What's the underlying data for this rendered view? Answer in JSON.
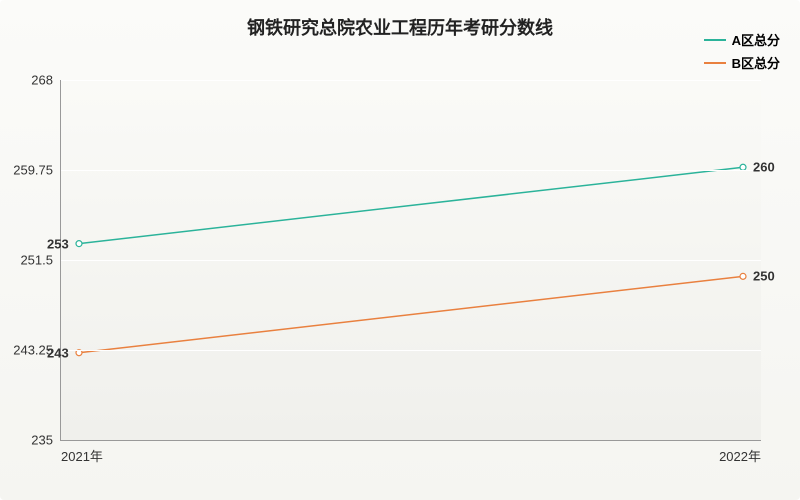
{
  "chart": {
    "type": "line",
    "title": "钢铁研究总院农业工程历年考研分数线",
    "title_fontsize": 18,
    "background_gradient": [
      "#fbfbf9",
      "#f0f0ec"
    ],
    "axis_color": "#999999",
    "grid_color": "#ffffff",
    "text_color": "#333333",
    "x_categories": [
      "2021年",
      "2022年"
    ],
    "y_ticks": [
      235,
      243.25,
      251.5,
      259.75,
      268
    ],
    "ylim": [
      235,
      268
    ],
    "series": [
      {
        "name": "A区总分",
        "color": "#2bb39a",
        "line_width": 1.5,
        "marker": "circle",
        "marker_size": 3,
        "values": [
          253,
          260
        ]
      },
      {
        "name": "B区总分",
        "color": "#e9803f",
        "line_width": 1.5,
        "marker": "circle",
        "marker_size": 3,
        "values": [
          243,
          250
        ]
      }
    ],
    "label_fontsize": 13
  }
}
